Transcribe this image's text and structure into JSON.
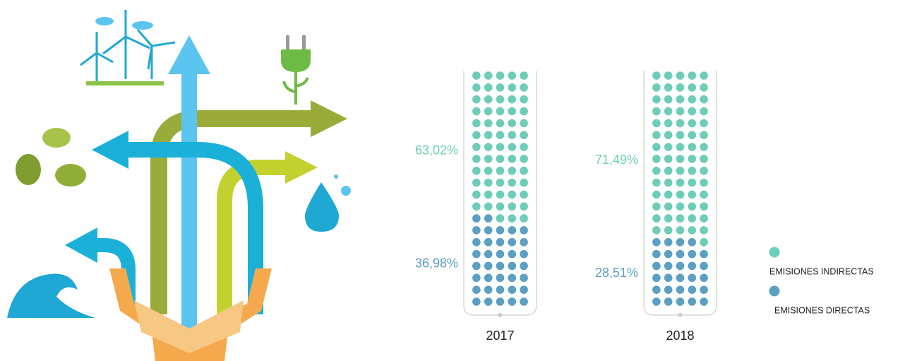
{
  "chart_data": {
    "type": "waffle",
    "categories": [
      "2017",
      "2018"
    ],
    "series": [
      {
        "name": "EMISIONES INDIRECTAS",
        "color": "#6dcdb8",
        "values": [
          63.02,
          71.49
        ],
        "value_labels": [
          "63,02%",
          "71,49%"
        ]
      },
      {
        "name": "EMISIONES DIRECTAS",
        "color": "#5b9fc3",
        "values": [
          36.98,
          28.51
        ],
        "value_labels": [
          "36,98%",
          "28,51%"
        ]
      }
    ]
  }
}
